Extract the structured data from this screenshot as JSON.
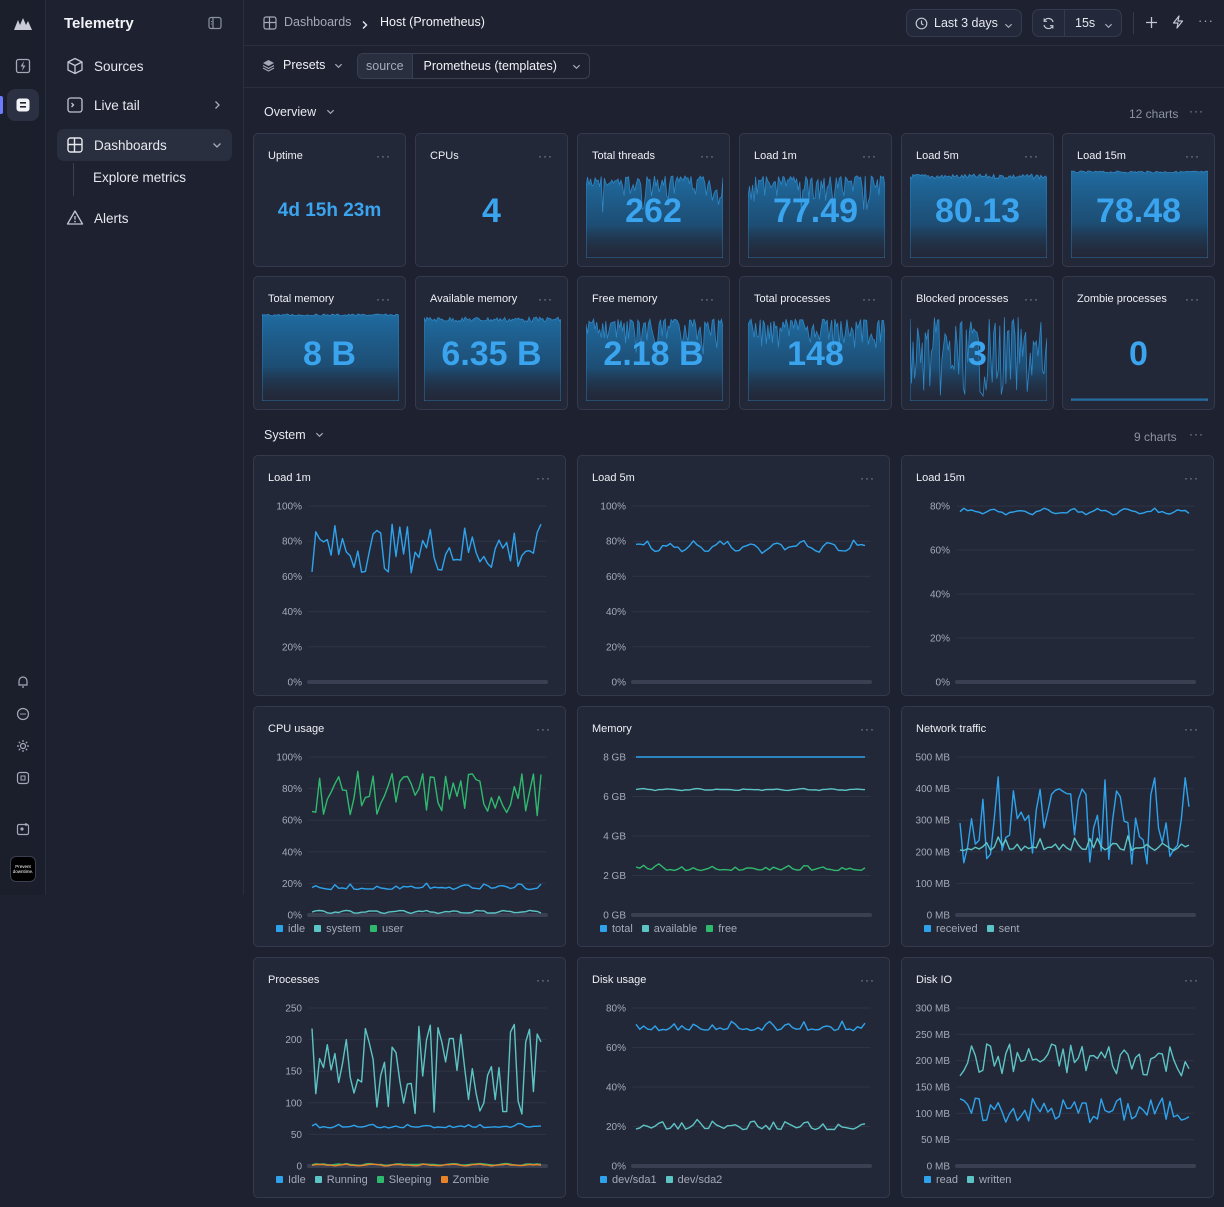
{
  "app": {
    "title": "Telemetry"
  },
  "sidebar": {
    "items": [
      {
        "label": "Sources",
        "icon": "cube-icon"
      },
      {
        "label": "Live tail",
        "icon": "terminal-icon"
      },
      {
        "label": "Dashboards",
        "icon": "dashboard-icon"
      },
      {
        "label": "Alerts",
        "icon": "warning-icon"
      }
    ],
    "sub_item": "Explore metrics",
    "rail_footer_badge": "Prevent downtime."
  },
  "breadcrumb": {
    "root": "Dashboards",
    "current": "Host (Prometheus)"
  },
  "toolbar": {
    "time_range": "Last 3 days",
    "refresh": "15s"
  },
  "filters": {
    "presets_label": "Presets",
    "source_label": "source",
    "source_value": "Prometheus (templates)"
  },
  "overview": {
    "title": "Overview",
    "count": "12 charts",
    "stats": [
      {
        "title": "Uptime",
        "value": "4d 15h 23m",
        "style": "none"
      },
      {
        "title": "CPUs",
        "value": "4",
        "style": "none"
      },
      {
        "title": "Total threads",
        "value": "262",
        "style": "spiky"
      },
      {
        "title": "Load 1m",
        "value": "77.49",
        "style": "spiky"
      },
      {
        "title": "Load 5m",
        "value": "80.13",
        "style": "smooth"
      },
      {
        "title": "Load 15m",
        "value": "78.48",
        "style": "flat"
      },
      {
        "title": "Total memory",
        "value": "8 B",
        "style": "flat"
      },
      {
        "title": "Available memory",
        "value": "6.35 B",
        "style": "smooth"
      },
      {
        "title": "Free memory",
        "value": "2.18 B",
        "style": "spiky"
      },
      {
        "title": "Total processes",
        "value": "148",
        "style": "spiky"
      },
      {
        "title": "Blocked processes",
        "value": "3",
        "style": "wild"
      },
      {
        "title": "Zombie processes",
        "value": "0",
        "style": "zero"
      }
    ]
  },
  "system": {
    "title": "System",
    "count": "9 charts"
  },
  "chart_data": [
    {
      "type": "line",
      "title": "Load 1m",
      "yticks": [
        "100%",
        "80%",
        "60%",
        "40%",
        "20%",
        "0%"
      ],
      "ylim": [
        0,
        100
      ],
      "series": [
        {
          "color": "#2ea3ec",
          "range": [
            62,
            90
          ],
          "jitter": "high"
        }
      ],
      "legend": []
    },
    {
      "type": "line",
      "title": "Load 5m",
      "yticks": [
        "100%",
        "80%",
        "60%",
        "40%",
        "20%",
        "0%"
      ],
      "ylim": [
        0,
        100
      ],
      "series": [
        {
          "color": "#2ea3ec",
          "range": [
            73,
            81
          ],
          "jitter": "low"
        }
      ],
      "legend": []
    },
    {
      "type": "line",
      "title": "Load 15m",
      "yticks": [
        "80%",
        "60%",
        "40%",
        "20%",
        "0%"
      ],
      "ylim": [
        0,
        80
      ],
      "series": [
        {
          "color": "#2ea3ec",
          "range": [
            76,
            79
          ],
          "jitter": "low"
        }
      ],
      "legend": []
    },
    {
      "type": "line",
      "title": "CPU usage",
      "yticks": [
        "100%",
        "80%",
        "60%",
        "40%",
        "20%",
        "0%"
      ],
      "ylim": [
        0,
        100
      ],
      "series": [
        {
          "name": "idle",
          "color": "#2ea3ec",
          "range": [
            14,
            21
          ],
          "jitter": "mid"
        },
        {
          "name": "system",
          "color": "#5cc4c4",
          "range": [
            1,
            3
          ],
          "jitter": "low"
        },
        {
          "name": "user",
          "color": "#2fb96e",
          "range": [
            63,
            91
          ],
          "jitter": "high"
        }
      ],
      "legend": [
        "idle",
        "system",
        "user"
      ]
    },
    {
      "type": "line",
      "title": "Memory",
      "yticks": [
        "8 GB",
        "6 GB",
        "4 GB",
        "2 GB",
        "0 GB"
      ],
      "ylim": [
        0,
        8
      ],
      "series": [
        {
          "name": "total",
          "color": "#2ea3ec",
          "range": [
            8,
            8
          ],
          "jitter": "none"
        },
        {
          "name": "available",
          "color": "#5cc4c4",
          "range": [
            6.3,
            6.4
          ],
          "jitter": "low"
        },
        {
          "name": "free",
          "color": "#2fb96e",
          "range": [
            2.1,
            2.6
          ],
          "jitter": "mid"
        }
      ],
      "legend": [
        "total",
        "available",
        "free"
      ]
    },
    {
      "type": "line",
      "title": "Network traffic",
      "yticks": [
        "500 MB",
        "400 MB",
        "300 MB",
        "200 MB",
        "100 MB",
        "0 MB"
      ],
      "ylim": [
        0,
        500
      ],
      "series": [
        {
          "name": "received",
          "color": "#2ea3ec",
          "range": [
            160,
            450
          ],
          "jitter": "high"
        },
        {
          "name": "sent",
          "color": "#5cc4c4",
          "range": [
            180,
            260
          ],
          "jitter": "mid"
        }
      ],
      "legend": [
        "received",
        "sent"
      ]
    },
    {
      "type": "line",
      "title": "Processes",
      "yticks": [
        "250",
        "200",
        "150",
        "100",
        "50",
        "0"
      ],
      "ylim": [
        0,
        250
      ],
      "series": [
        {
          "name": "Idle",
          "color": "#2ea3ec",
          "range": [
            57,
            68
          ],
          "jitter": "mid"
        },
        {
          "name": "Running",
          "color": "#5cc4c4",
          "range": [
            80,
            225
          ],
          "jitter": "high"
        },
        {
          "name": "Sleeping",
          "color": "#2fb96e",
          "range": [
            1,
            4
          ],
          "jitter": "low"
        },
        {
          "name": "Zombie",
          "color": "#e8832a",
          "range": [
            0,
            3
          ],
          "jitter": "low"
        }
      ],
      "legend": [
        "Idle",
        "Running",
        "Sleeping",
        "Zombie"
      ]
    },
    {
      "type": "line",
      "title": "Disk usage",
      "yticks": [
        "80%",
        "60%",
        "40%",
        "20%",
        "0%"
      ],
      "ylim": [
        0,
        80
      ],
      "series": [
        {
          "name": "dev/sda1",
          "color": "#2ea3ec",
          "range": [
            66,
            74
          ],
          "jitter": "mid"
        },
        {
          "name": "dev/sda2",
          "color": "#5cc4c4",
          "range": [
            16,
            24
          ],
          "jitter": "mid"
        }
      ],
      "legend": [
        "dev/sda1",
        "dev/sda2"
      ]
    },
    {
      "type": "line",
      "title": "Disk IO",
      "yticks": [
        "300 MB",
        "250 MB",
        "200 MB",
        "150 MB",
        "100 MB",
        "50 MB",
        "0 MB"
      ],
      "ylim": [
        0,
        300
      ],
      "series": [
        {
          "name": "read",
          "color": "#2ea3ec",
          "range": [
            80,
            130
          ],
          "jitter": "high"
        },
        {
          "name": "written",
          "color": "#5cc4c4",
          "range": [
            170,
            235
          ],
          "jitter": "high"
        }
      ],
      "legend": [
        "read",
        "written"
      ]
    }
  ]
}
